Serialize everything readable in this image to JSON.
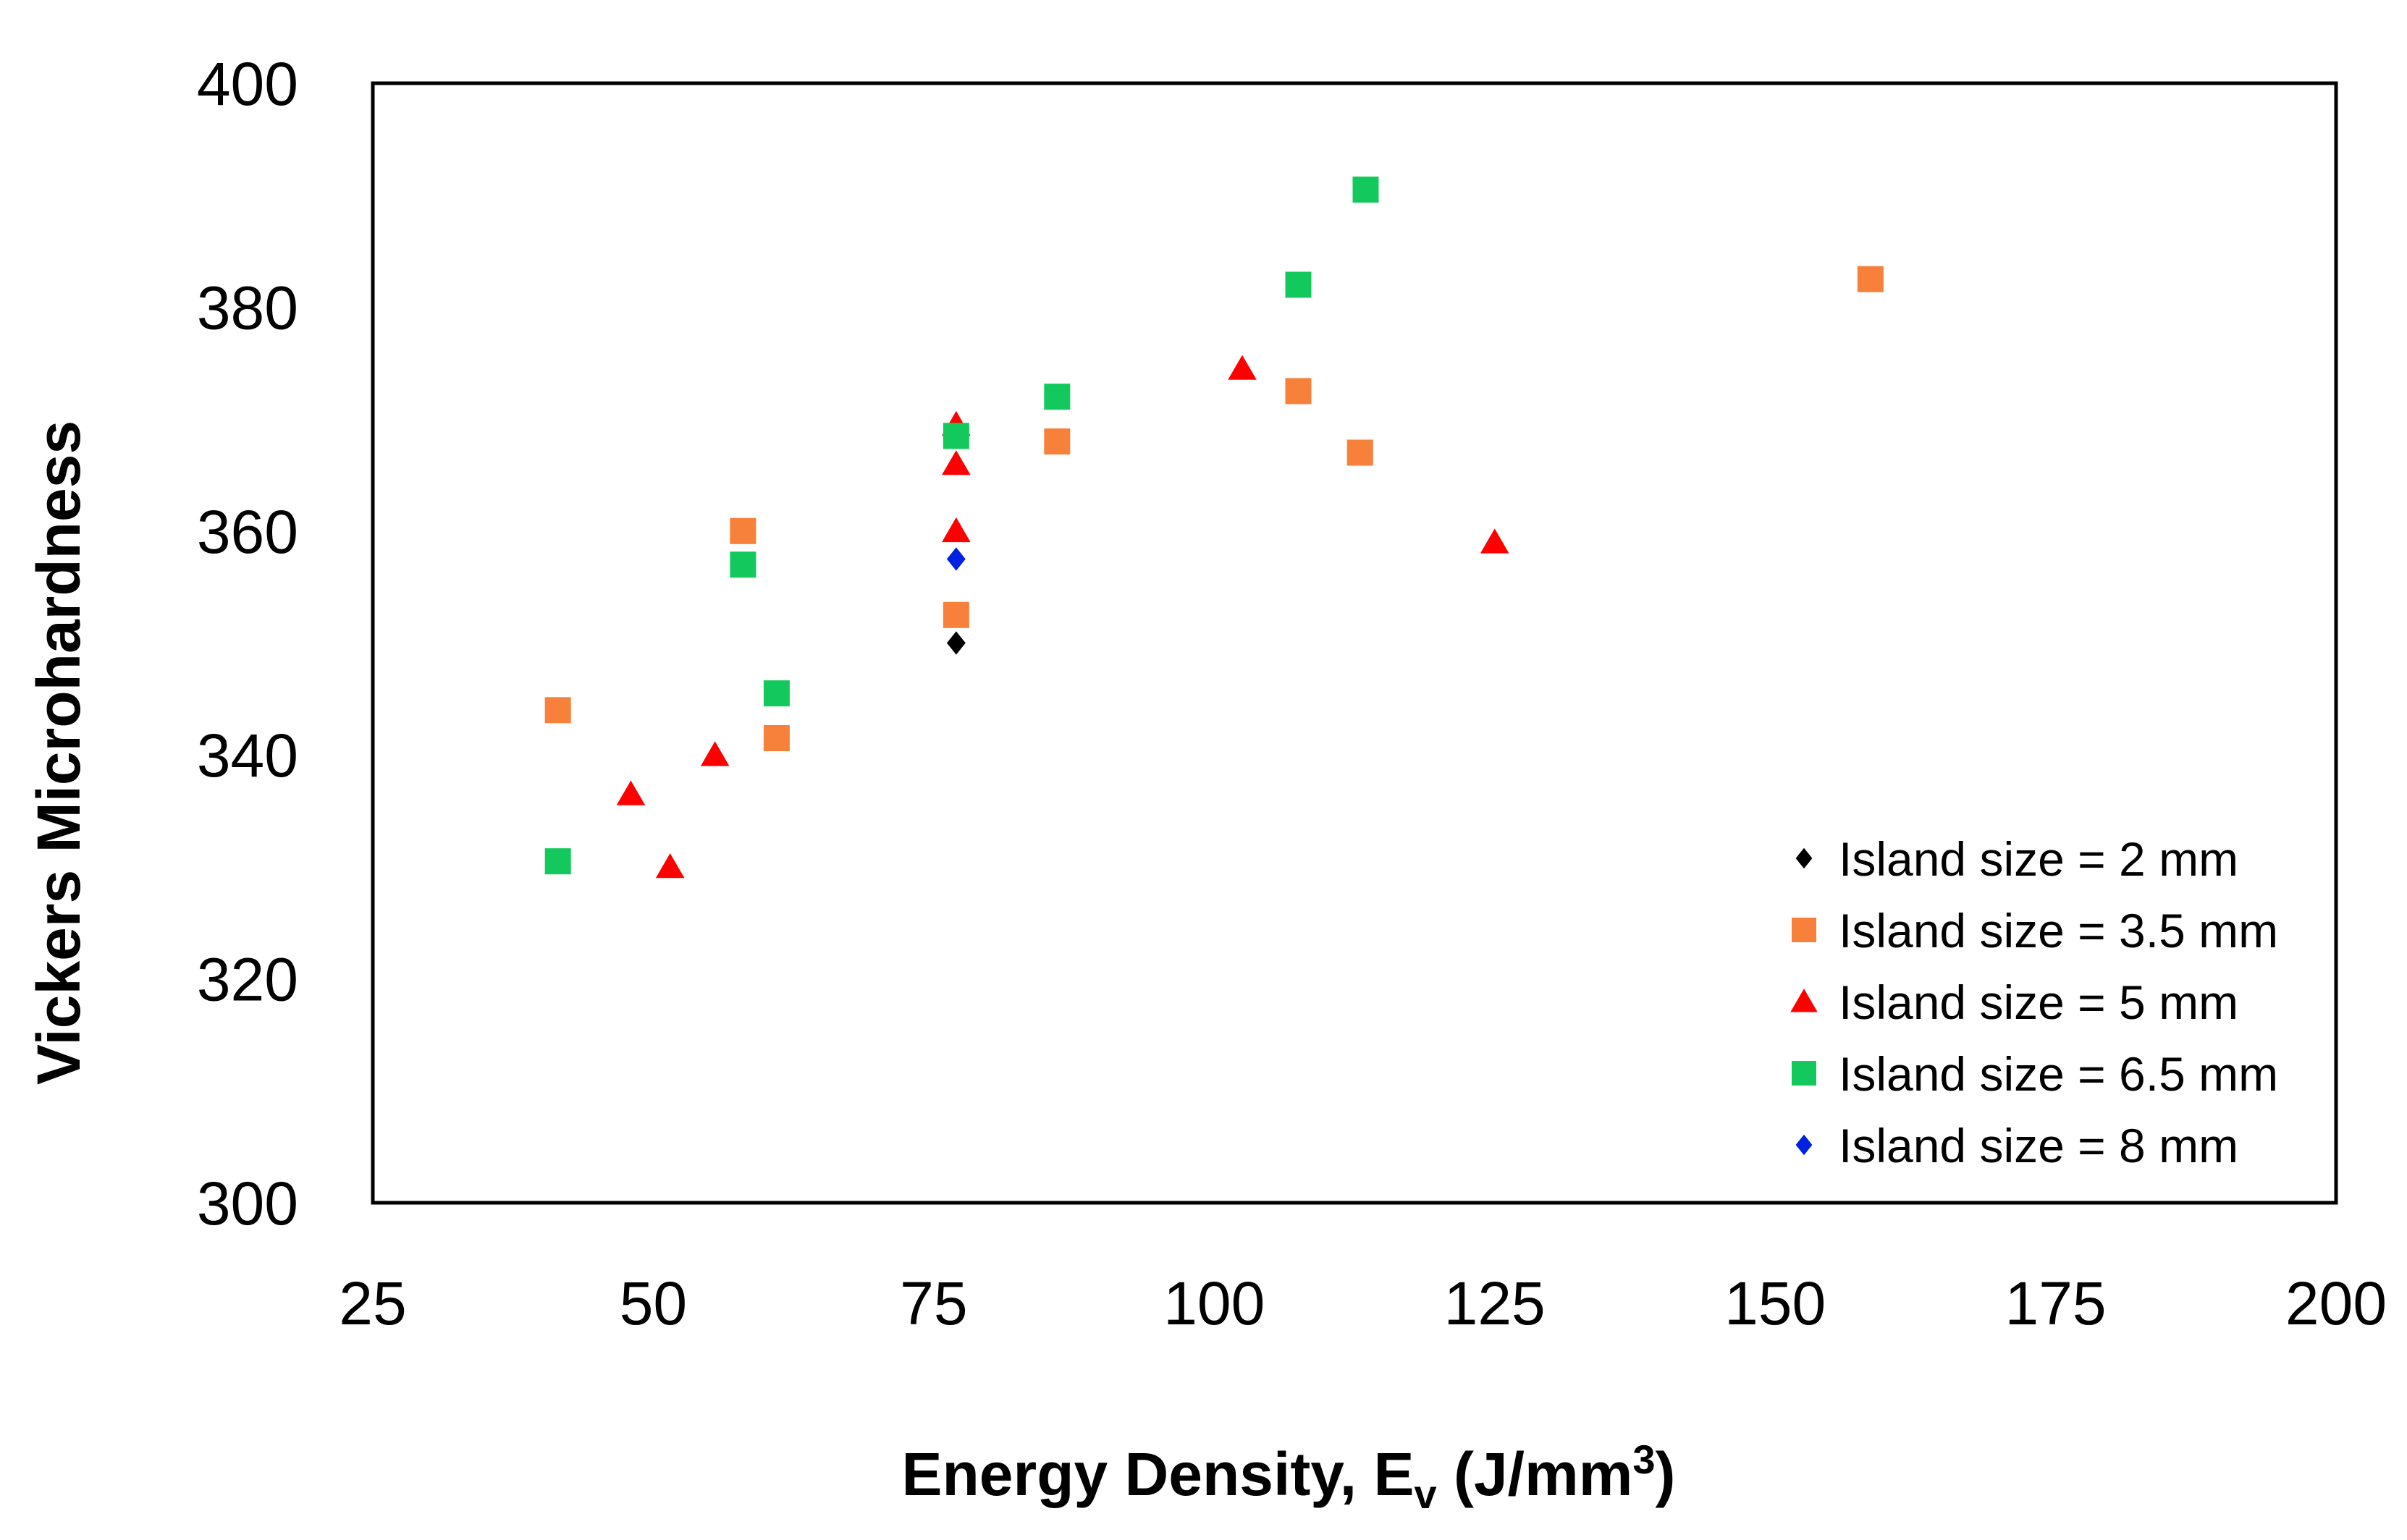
{
  "chart_data": {
    "type": "scatter",
    "title": "",
    "xlabel": {
      "main": "Energy Density, E",
      "sub": "v",
      "unit_pre": " (J/mm",
      "sup": "3",
      "unit_post": ")"
    },
    "ylabel": "Vickers Microhardness",
    "xlim": [
      25,
      200
    ],
    "ylim": [
      300,
      400
    ],
    "xticks": [
      25,
      50,
      75,
      100,
      125,
      150,
      175,
      200
    ],
    "yticks": [
      300,
      320,
      340,
      360,
      380,
      400
    ],
    "grid": false,
    "legend_position": "bottom-right",
    "series": [
      {
        "name": "Island size = 2 mm",
        "marker": "diamond",
        "color": "#000000",
        "points": [
          [
            77,
            350
          ]
        ]
      },
      {
        "name": "Island size = 3.5 mm",
        "marker": "square",
        "color": "#F7813A",
        "points": [
          [
            41.5,
            344
          ],
          [
            58,
            360
          ],
          [
            61,
            341.5
          ],
          [
            77,
            352.5
          ],
          [
            86,
            368
          ],
          [
            107.5,
            372.5
          ],
          [
            113,
            367
          ],
          [
            158.5,
            382.5
          ]
        ]
      },
      {
        "name": "Island size = 5 mm",
        "marker": "triangle",
        "color": "#FF0000",
        "points": [
          [
            48,
            336.5
          ],
          [
            51.5,
            330
          ],
          [
            55.5,
            340
          ],
          [
            77,
            369.5
          ],
          [
            77,
            366
          ],
          [
            77,
            360
          ],
          [
            102.5,
            374.5
          ],
          [
            125,
            359
          ]
        ]
      },
      {
        "name": "Island size = 6.5 mm",
        "marker": "square",
        "color": "#13C95E",
        "points": [
          [
            41.5,
            330.5
          ],
          [
            58,
            357
          ],
          [
            61,
            345.5
          ],
          [
            77,
            368.5
          ],
          [
            86,
            372
          ],
          [
            107.5,
            382
          ],
          [
            113.5,
            390.5
          ]
        ]
      },
      {
        "name": "Island size = 8 mm",
        "marker": "diamond",
        "color": "#0022E0",
        "points": [
          [
            77,
            357.5
          ]
        ]
      }
    ]
  }
}
